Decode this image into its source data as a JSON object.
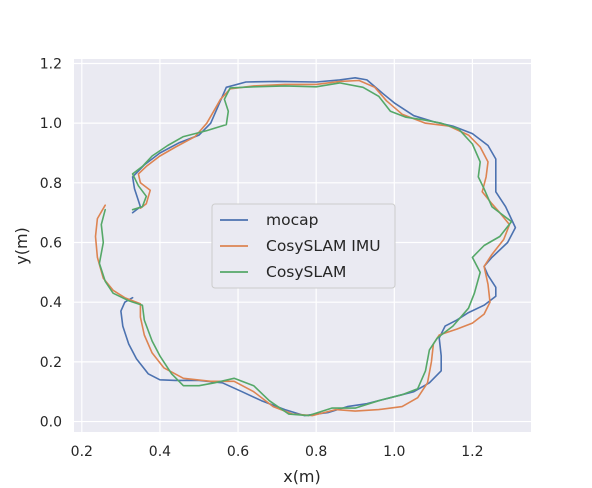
{
  "chart_data": {
    "type": "line",
    "xlabel": "x(m)",
    "ylabel": "y(m)",
    "xlim": [
      0.18,
      1.35
    ],
    "ylim": [
      -0.035,
      1.215
    ],
    "xticks": [
      "0.2",
      "0.4",
      "0.6",
      "0.8",
      "1.0",
      "1.2"
    ],
    "xtick_values": [
      0.2,
      0.4,
      0.6,
      0.8,
      1.0,
      1.2
    ],
    "yticks": [
      "0.0",
      "0.2",
      "0.4",
      "0.6",
      "0.8",
      "1.0",
      "1.2"
    ],
    "ytick_values": [
      0.0,
      0.2,
      0.4,
      0.6,
      0.8,
      1.0,
      1.2
    ],
    "grid": true,
    "legend_position": "center",
    "background": "#EAEAF2",
    "series": [
      {
        "name": "mocap",
        "color": "#4C72B0",
        "points": [
          [
            0.33,
            0.7
          ],
          [
            0.35,
            0.72
          ],
          [
            0.335,
            0.78
          ],
          [
            0.33,
            0.82
          ],
          [
            0.36,
            0.86
          ],
          [
            0.4,
            0.9
          ],
          [
            0.45,
            0.935
          ],
          [
            0.5,
            0.96
          ],
          [
            0.53,
            1.0
          ],
          [
            0.55,
            1.06
          ],
          [
            0.57,
            1.12
          ],
          [
            0.62,
            1.138
          ],
          [
            0.7,
            1.14
          ],
          [
            0.8,
            1.138
          ],
          [
            0.86,
            1.145
          ],
          [
            0.9,
            1.152
          ],
          [
            0.93,
            1.145
          ],
          [
            0.97,
            1.1
          ],
          [
            1.0,
            1.068
          ],
          [
            1.05,
            1.025
          ],
          [
            1.1,
            1.005
          ],
          [
            1.15,
            0.99
          ],
          [
            1.2,
            0.965
          ],
          [
            1.24,
            0.925
          ],
          [
            1.26,
            0.88
          ],
          [
            1.26,
            0.83
          ],
          [
            1.26,
            0.77
          ],
          [
            1.285,
            0.72
          ],
          [
            1.31,
            0.65
          ],
          [
            1.29,
            0.6
          ],
          [
            1.25,
            0.55
          ],
          [
            1.23,
            0.52
          ],
          [
            1.24,
            0.49
          ],
          [
            1.26,
            0.45
          ],
          [
            1.26,
            0.42
          ],
          [
            1.23,
            0.39
          ],
          [
            1.19,
            0.365
          ],
          [
            1.16,
            0.34
          ],
          [
            1.13,
            0.32
          ],
          [
            1.115,
            0.28
          ],
          [
            1.12,
            0.22
          ],
          [
            1.12,
            0.17
          ],
          [
            1.09,
            0.13
          ],
          [
            1.05,
            0.1
          ],
          [
            0.99,
            0.08
          ],
          [
            0.93,
            0.06
          ],
          [
            0.88,
            0.05
          ],
          [
            0.83,
            0.03
          ],
          [
            0.77,
            0.02
          ],
          [
            0.72,
            0.04
          ],
          [
            0.66,
            0.07
          ],
          [
            0.61,
            0.1
          ],
          [
            0.56,
            0.13
          ],
          [
            0.5,
            0.138
          ],
          [
            0.44,
            0.138
          ],
          [
            0.4,
            0.14
          ],
          [
            0.37,
            0.16
          ],
          [
            0.34,
            0.21
          ],
          [
            0.32,
            0.26
          ],
          [
            0.305,
            0.32
          ],
          [
            0.3,
            0.37
          ],
          [
            0.31,
            0.4
          ],
          [
            0.33,
            0.415
          ]
        ]
      },
      {
        "name": "CosySLAM IMU",
        "color": "#DD8452",
        "points": [
          [
            0.26,
            0.725
          ],
          [
            0.24,
            0.68
          ],
          [
            0.235,
            0.62
          ],
          [
            0.24,
            0.55
          ],
          [
            0.255,
            0.48
          ],
          [
            0.28,
            0.44
          ],
          [
            0.31,
            0.415
          ],
          [
            0.35,
            0.395
          ],
          [
            0.35,
            0.35
          ],
          [
            0.36,
            0.29
          ],
          [
            0.38,
            0.23
          ],
          [
            0.41,
            0.18
          ],
          [
            0.46,
            0.145
          ],
          [
            0.53,
            0.135
          ],
          [
            0.59,
            0.135
          ],
          [
            0.64,
            0.1
          ],
          [
            0.69,
            0.05
          ],
          [
            0.74,
            0.025
          ],
          [
            0.79,
            0.02
          ],
          [
            0.85,
            0.04
          ],
          [
            0.9,
            0.035
          ],
          [
            0.96,
            0.04
          ],
          [
            1.02,
            0.05
          ],
          [
            1.06,
            0.08
          ],
          [
            1.085,
            0.13
          ],
          [
            1.095,
            0.2
          ],
          [
            1.1,
            0.26
          ],
          [
            1.115,
            0.29
          ],
          [
            1.16,
            0.31
          ],
          [
            1.2,
            0.33
          ],
          [
            1.23,
            0.36
          ],
          [
            1.245,
            0.4
          ],
          [
            1.24,
            0.46
          ],
          [
            1.23,
            0.52
          ],
          [
            1.25,
            0.56
          ],
          [
            1.28,
            0.61
          ],
          [
            1.295,
            0.66
          ],
          [
            1.27,
            0.7
          ],
          [
            1.25,
            0.73
          ],
          [
            1.225,
            0.77
          ],
          [
            1.235,
            0.82
          ],
          [
            1.24,
            0.87
          ],
          [
            1.22,
            0.92
          ],
          [
            1.19,
            0.96
          ],
          [
            1.14,
            0.99
          ],
          [
            1.08,
            1.0
          ],
          [
            1.02,
            1.03
          ],
          [
            0.98,
            1.075
          ],
          [
            0.95,
            1.12
          ],
          [
            0.91,
            1.143
          ],
          [
            0.86,
            1.14
          ],
          [
            0.8,
            1.13
          ],
          [
            0.72,
            1.13
          ],
          [
            0.64,
            1.125
          ],
          [
            0.58,
            1.115
          ],
          [
            0.555,
            1.08
          ],
          [
            0.54,
            1.045
          ],
          [
            0.52,
            1.0
          ],
          [
            0.49,
            0.955
          ],
          [
            0.44,
            0.92
          ],
          [
            0.4,
            0.89
          ],
          [
            0.365,
            0.855
          ],
          [
            0.345,
            0.83
          ],
          [
            0.35,
            0.8
          ],
          [
            0.375,
            0.775
          ],
          [
            0.365,
            0.73
          ],
          [
            0.35,
            0.715
          ]
        ]
      },
      {
        "name": "CosySLAM",
        "color": "#55A868",
        "points": [
          [
            0.26,
            0.71
          ],
          [
            0.25,
            0.66
          ],
          [
            0.255,
            0.6
          ],
          [
            0.245,
            0.53
          ],
          [
            0.26,
            0.47
          ],
          [
            0.28,
            0.43
          ],
          [
            0.32,
            0.405
          ],
          [
            0.355,
            0.39
          ],
          [
            0.36,
            0.34
          ],
          [
            0.38,
            0.27
          ],
          [
            0.4,
            0.22
          ],
          [
            0.43,
            0.16
          ],
          [
            0.46,
            0.12
          ],
          [
            0.5,
            0.12
          ],
          [
            0.54,
            0.13
          ],
          [
            0.59,
            0.145
          ],
          [
            0.64,
            0.12
          ],
          [
            0.68,
            0.07
          ],
          [
            0.73,
            0.025
          ],
          [
            0.78,
            0.02
          ],
          [
            0.84,
            0.045
          ],
          [
            0.9,
            0.045
          ],
          [
            0.96,
            0.07
          ],
          [
            1.02,
            0.09
          ],
          [
            1.06,
            0.11
          ],
          [
            1.08,
            0.17
          ],
          [
            1.09,
            0.24
          ],
          [
            1.11,
            0.28
          ],
          [
            1.15,
            0.32
          ],
          [
            1.19,
            0.38
          ],
          [
            1.205,
            0.43
          ],
          [
            1.22,
            0.5
          ],
          [
            1.2,
            0.55
          ],
          [
            1.23,
            0.59
          ],
          [
            1.27,
            0.62
          ],
          [
            1.3,
            0.67
          ],
          [
            1.25,
            0.72
          ],
          [
            1.23,
            0.78
          ],
          [
            1.215,
            0.82
          ],
          [
            1.22,
            0.87
          ],
          [
            1.2,
            0.93
          ],
          [
            1.165,
            0.98
          ],
          [
            1.12,
            1.0
          ],
          [
            1.08,
            1.01
          ],
          [
            1.03,
            1.02
          ],
          [
            0.99,
            1.04
          ],
          [
            0.96,
            1.09
          ],
          [
            0.92,
            1.12
          ],
          [
            0.86,
            1.135
          ],
          [
            0.8,
            1.122
          ],
          [
            0.72,
            1.125
          ],
          [
            0.64,
            1.122
          ],
          [
            0.58,
            1.118
          ],
          [
            0.565,
            1.08
          ],
          [
            0.575,
            1.04
          ],
          [
            0.57,
            0.995
          ],
          [
            0.52,
            0.975
          ],
          [
            0.46,
            0.955
          ],
          [
            0.42,
            0.925
          ],
          [
            0.38,
            0.89
          ],
          [
            0.355,
            0.855
          ],
          [
            0.33,
            0.83
          ],
          [
            0.345,
            0.79
          ],
          [
            0.365,
            0.755
          ],
          [
            0.355,
            0.72
          ],
          [
            0.33,
            0.71
          ]
        ]
      }
    ]
  }
}
